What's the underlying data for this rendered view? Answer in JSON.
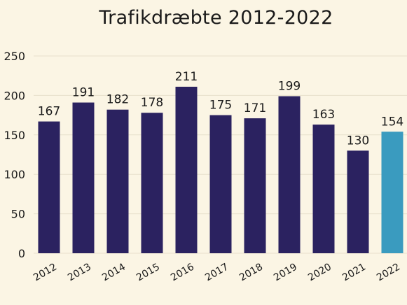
{
  "chart_data": {
    "type": "bar",
    "title": "Trafikdræbte 2012-2022",
    "xlabel": "",
    "ylabel": "",
    "categories": [
      "2012",
      "2013",
      "2014",
      "2015",
      "2016",
      "2017",
      "2018",
      "2019",
      "2020",
      "2021",
      "2022"
    ],
    "values": [
      167,
      191,
      182,
      178,
      211,
      175,
      171,
      199,
      163,
      130,
      154
    ],
    "data_labels": [
      "167",
      "191",
      "182",
      "178",
      "211",
      "175",
      "171",
      "199",
      "163",
      "130",
      "154"
    ],
    "ylim": [
      0,
      250
    ],
    "yticks": [
      0,
      50,
      100,
      150,
      200,
      250
    ],
    "ytick_labels": [
      "0",
      "50",
      "100",
      "150",
      "200",
      "250"
    ],
    "grid": true,
    "legend": "none",
    "x_tick_rotation_deg": -30,
    "colors": {
      "bar": "#2b2260",
      "highlight_bar": "#3a9bbf",
      "grid": "#e8e0cc",
      "background": "#fbf5e4",
      "text": "#1a1a1a"
    },
    "highlight_category": "2022"
  }
}
